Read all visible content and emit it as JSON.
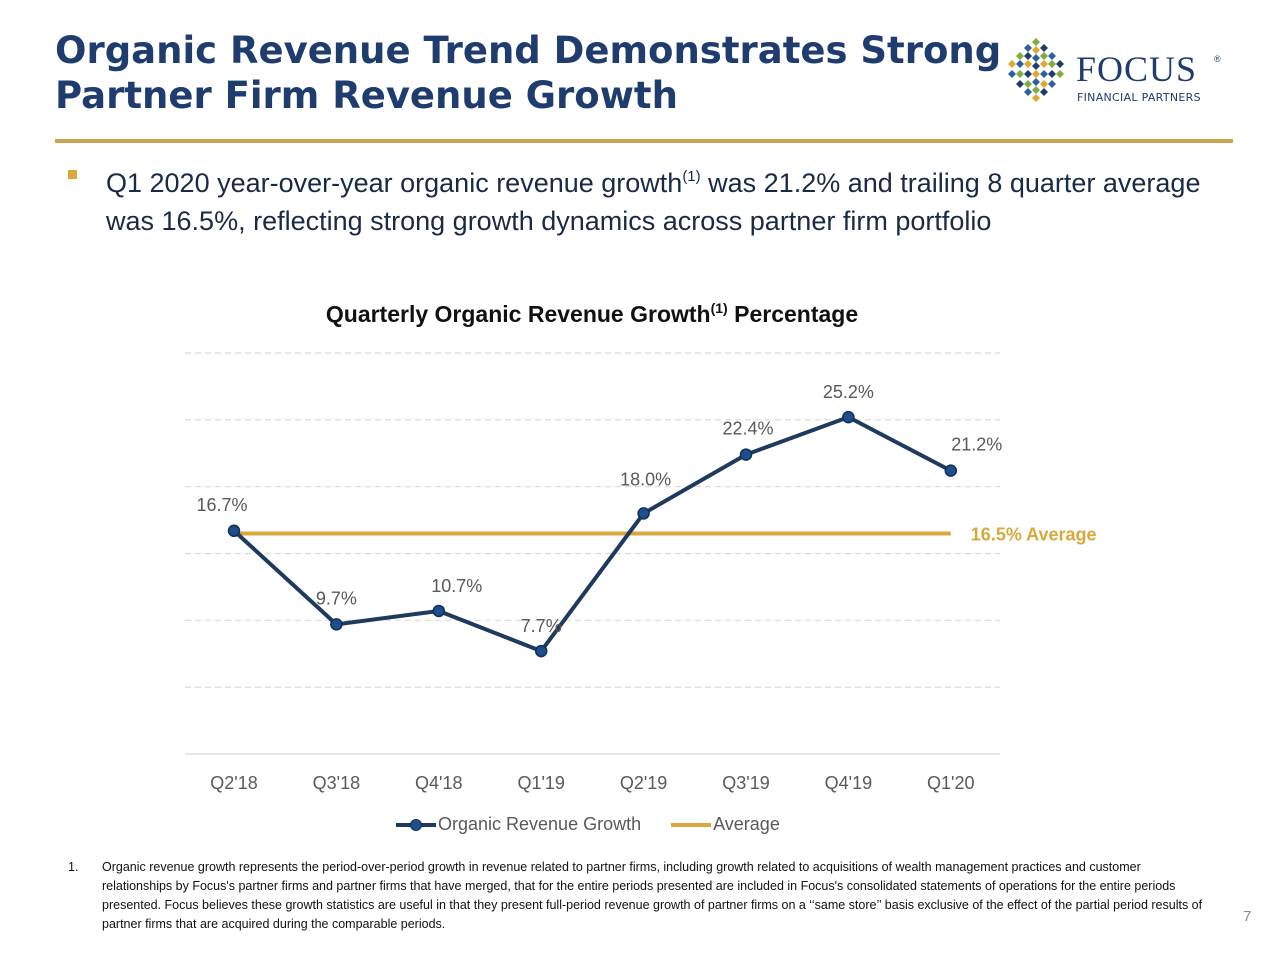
{
  "slide": {
    "title_line1": "Organic Revenue Trend Demonstrates Strong",
    "title_line2": "Partner Firm Revenue Growth",
    "logo_name": "FOCUS",
    "logo_reg": "®",
    "logo_sub": "FINANCIAL PARTNERS",
    "bullet_part1": "Q1 2020 year-over-year organic revenue growth",
    "bullet_sup": "(1)",
    "bullet_part2": " was 21.2% and trailing 8 quarter average was 16.5%, reflecting strong growth dynamics across partner firm portfolio",
    "footnote_number": "1.",
    "footnote_text": "Organic revenue growth represents the period-over-period growth in revenue related to partner firms, including growth related to acquisitions of wealth management practices and customer relationships by Focus's partner firms and partner firms that have merged, that for the entire periods presented are included in Focus's consolidated statements of operations for the entire periods presented. Focus believes these growth statistics are useful in that they present full-period revenue growth of partner firms on a ‘‘same store’’ basis exclusive of the effect of the partial period results of partner firms that are acquired during the comparable periods.",
    "page_number": "7"
  },
  "colors": {
    "title": "#1f3c6e",
    "accent_gold": "#c9a64b",
    "series_line": "#1f3a5f",
    "series_marker": "#1f4e8c",
    "average_line": "#d9a83a",
    "gridline": "#d9d9d9",
    "axis_text": "#595959"
  },
  "chart_data": {
    "type": "line",
    "title": "Quarterly Organic Revenue Growth",
    "title_sup": "(1)",
    "title_suffix": " Percentage",
    "categories": [
      "Q2'18",
      "Q3'18",
      "Q4'18",
      "Q1'19",
      "Q2'19",
      "Q3'19",
      "Q4'19",
      "Q1'20"
    ],
    "series": [
      {
        "name": "Organic Revenue Growth",
        "values": [
          16.7,
          9.7,
          10.7,
          7.7,
          18.0,
          22.4,
          25.2,
          21.2
        ],
        "labels": [
          "16.7%",
          "9.7%",
          "10.7%",
          "7.7%",
          "18.0%",
          "22.4%",
          "25.2%",
          "21.2%"
        ]
      },
      {
        "name": "Average",
        "values": [
          16.5,
          16.5,
          16.5,
          16.5,
          16.5,
          16.5,
          16.5,
          16.5
        ]
      }
    ],
    "average_annotation": "16.5% Average",
    "ylim": [
      0,
      30
    ],
    "yaxis_visible": false,
    "grid": "horizontal dashed",
    "legend": "bottom-center",
    "xlabel": "",
    "ylabel": ""
  }
}
